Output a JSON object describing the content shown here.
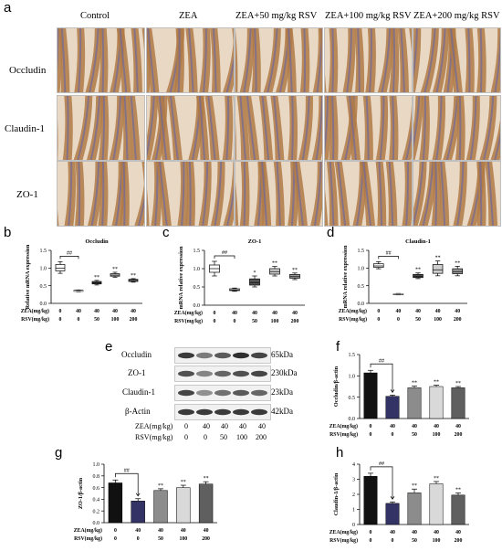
{
  "panel_letters": {
    "a": "a",
    "b": "b",
    "c": "c",
    "d": "d",
    "e": "e",
    "f": "f",
    "g": "g",
    "h": "h"
  },
  "ihc": {
    "columns": [
      "Control",
      "ZEA",
      "ZEA+50 mg/kg RSV",
      "ZEA+100 mg/kg RSV",
      "ZEA+200 mg/kg RSV"
    ],
    "rows": [
      "Occludin",
      "Claudin-1",
      "ZO-1"
    ]
  },
  "blot": {
    "proteins": [
      "Occludin",
      "ZO-1",
      "Claudin-1",
      "β-Actin"
    ],
    "sizes": [
      "65kDa",
      "230kDa",
      "23kDa",
      "42kDa"
    ],
    "zea_label": "ZEA(mg/kg)",
    "rsv_label": "RSV(mg/kg)",
    "zea_values": [
      "0",
      "40",
      "40",
      "40",
      "40"
    ],
    "rsv_values": [
      "0",
      "0",
      "50",
      "100",
      "200"
    ]
  },
  "colors": {
    "stain_brown": "#b07a45",
    "stain_blue": "#6f6a9a",
    "bar_colors": [
      "#111111",
      "#333366",
      "#8c8c8c",
      "#d9d9d9",
      "#5f5f5f"
    ]
  },
  "chart_data": [
    {
      "id": "b",
      "type": "box",
      "title": "Occludin",
      "ylabel": "Relative mRNA expression",
      "ylim": [
        0,
        1.5
      ],
      "yticks": [
        "0.0",
        "0.5",
        "1.0",
        "1.5"
      ],
      "row_labels": [
        "ZEA(mg/kg)",
        "RSV(mg/kg)"
      ],
      "zea": [
        "0",
        "40",
        "40",
        "40",
        "40"
      ],
      "rsv": [
        "0",
        "0",
        "50",
        "100",
        "200"
      ],
      "boxes": [
        {
          "min": 0.85,
          "q1": 0.92,
          "med": 1.0,
          "q3": 1.1,
          "max": 1.18,
          "fill": "#ffffff"
        },
        {
          "min": 0.33,
          "q1": 0.34,
          "med": 0.35,
          "q3": 0.37,
          "max": 0.38,
          "fill": "#111111"
        },
        {
          "min": 0.52,
          "q1": 0.55,
          "med": 0.58,
          "q3": 0.62,
          "max": 0.65,
          "fill": "#555555"
        },
        {
          "min": 0.74,
          "q1": 0.77,
          "med": 0.8,
          "q3": 0.84,
          "max": 0.88,
          "fill": "#cfcfcf"
        },
        {
          "min": 0.6,
          "q1": 0.62,
          "med": 0.65,
          "q3": 0.68,
          "max": 0.7,
          "fill": "#9a9a9a"
        }
      ],
      "annotations": [
        "##",
        "",
        "**",
        "**",
        "**"
      ]
    },
    {
      "id": "c",
      "type": "box",
      "title": "ZO-1",
      "ylabel": "mRNA relative expression",
      "ylim": [
        0,
        1.5
      ],
      "yticks": [
        "0.0",
        "0.5",
        "1.0",
        "1.5"
      ],
      "row_labels": [
        "ZEA(mg/kg)",
        "RSV(mg/kg)"
      ],
      "zea": [
        "0",
        "40",
        "40",
        "40",
        "40"
      ],
      "rsv": [
        "0",
        "0",
        "50",
        "100",
        "200"
      ],
      "boxes": [
        {
          "min": 0.8,
          "q1": 0.9,
          "med": 1.0,
          "q3": 1.1,
          "max": 1.2,
          "fill": "#ffffff"
        },
        {
          "min": 0.38,
          "q1": 0.4,
          "med": 0.43,
          "q3": 0.45,
          "max": 0.47,
          "fill": "#111111"
        },
        {
          "min": 0.5,
          "q1": 0.55,
          "med": 0.62,
          "q3": 0.72,
          "max": 0.8,
          "fill": "#555555"
        },
        {
          "min": 0.8,
          "q1": 0.85,
          "med": 0.92,
          "q3": 1.0,
          "max": 1.06,
          "fill": "#cfcfcf"
        },
        {
          "min": 0.7,
          "q1": 0.74,
          "med": 0.78,
          "q3": 0.84,
          "max": 0.88,
          "fill": "#9a9a9a"
        }
      ],
      "annotations": [
        "##",
        "",
        "*",
        "**",
        "**"
      ]
    },
    {
      "id": "d",
      "type": "box",
      "title": "Claudin-1",
      "ylabel": "mRNA relative expression",
      "ylim": [
        0,
        1.5
      ],
      "yticks": [
        "0.0",
        "0.5",
        "1.0",
        "1.5"
      ],
      "row_labels": [
        "ZEA(mg/kg)",
        "RSV(mg/kg)"
      ],
      "zea": [
        "0",
        "40",
        "40",
        "40",
        "40"
      ],
      "rsv": [
        "0",
        "0",
        "50",
        "100",
        "200"
      ],
      "boxes": [
        {
          "min": 0.98,
          "q1": 1.02,
          "med": 1.06,
          "q3": 1.12,
          "max": 1.18,
          "fill": "#ffffff"
        },
        {
          "min": 0.24,
          "q1": 0.25,
          "med": 0.26,
          "q3": 0.27,
          "max": 0.28,
          "fill": "#111111"
        },
        {
          "min": 0.7,
          "q1": 0.73,
          "med": 0.77,
          "q3": 0.82,
          "max": 0.86,
          "fill": "#555555"
        },
        {
          "min": 0.78,
          "q1": 0.85,
          "med": 0.95,
          "q3": 1.1,
          "max": 1.2,
          "fill": "#cfcfcf"
        },
        {
          "min": 0.78,
          "q1": 0.84,
          "med": 0.9,
          "q3": 0.98,
          "max": 1.05,
          "fill": "#9a9a9a"
        }
      ],
      "annotations": [
        "##",
        "",
        "**",
        "**",
        "**"
      ]
    },
    {
      "id": "f",
      "type": "bar",
      "ylabel": "Occludin/β-actin",
      "ylim": [
        0,
        1.5
      ],
      "yticks": [
        "0.0",
        "0.5",
        "1.0",
        "1.5"
      ],
      "row_labels": [
        "ZEA(mg/kg)",
        "RSV(mg/kg)"
      ],
      "zea": [
        "0",
        "40",
        "40",
        "40",
        "40"
      ],
      "rsv": [
        "0",
        "0",
        "50",
        "100",
        "200"
      ],
      "values": [
        1.07,
        0.52,
        0.72,
        0.75,
        0.72
      ],
      "errors": [
        0.06,
        0.03,
        0.04,
        0.03,
        0.03
      ],
      "annotations": [
        "##",
        "",
        "**",
        "**",
        "**"
      ]
    },
    {
      "id": "g",
      "type": "bar",
      "ylabel": "ZO-1/β-actin",
      "ylim": [
        0,
        1.0
      ],
      "yticks": [
        "0.0",
        "0.2",
        "0.4",
        "0.6",
        "0.8",
        "1.0"
      ],
      "row_labels": [
        "ZEA(mg/kg)",
        "RSV(mg/kg)"
      ],
      "zea": [
        "0",
        "40",
        "40",
        "40",
        "40"
      ],
      "rsv": [
        "0",
        "0",
        "50",
        "100",
        "200"
      ],
      "values": [
        0.68,
        0.37,
        0.55,
        0.6,
        0.66
      ],
      "errors": [
        0.05,
        0.04,
        0.03,
        0.04,
        0.04
      ],
      "annotations": [
        "##",
        "",
        "**",
        "**",
        "**"
      ]
    },
    {
      "id": "h",
      "type": "bar",
      "ylabel": "Claudin-1/β-actin",
      "ylim": [
        0,
        4.0
      ],
      "yticks": [
        "0",
        "1",
        "2",
        "3",
        "4"
      ],
      "row_labels": [
        "ZEA(mg/kg)",
        "RSV(mg/kg)"
      ],
      "zea": [
        "0",
        "40",
        "40",
        "40",
        "40"
      ],
      "rsv": [
        "0",
        "0",
        "50",
        "100",
        "200"
      ],
      "values": [
        3.2,
        1.4,
        2.1,
        2.7,
        1.95
      ],
      "errors": [
        0.2,
        0.1,
        0.25,
        0.15,
        0.15
      ],
      "annotations": [
        "##",
        "",
        "**",
        "**",
        "**"
      ]
    }
  ]
}
